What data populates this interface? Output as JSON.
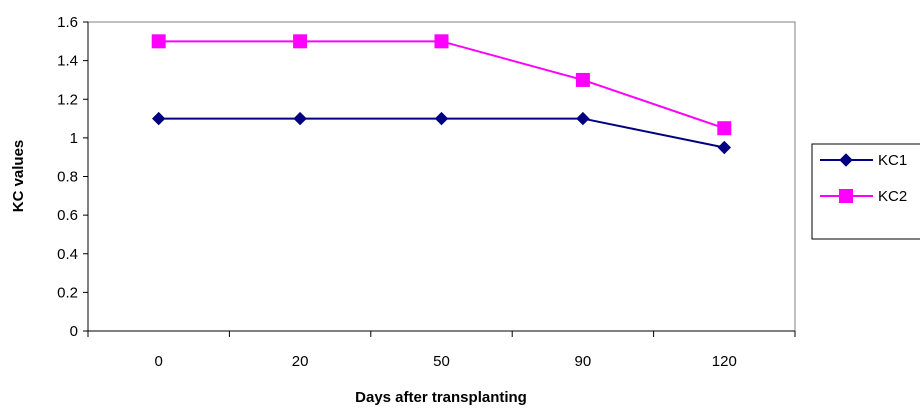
{
  "chart_data": {
    "type": "line",
    "categories": [
      "0",
      "20",
      "50",
      "90",
      "120"
    ],
    "xlabel": "Days after transplanting",
    "ylabel": "KC values",
    "ylim": [
      0,
      1.6
    ],
    "yticks": [
      "0",
      "0.2",
      "0.4",
      "0.6",
      "0.8",
      "1",
      "1.2",
      "1.4",
      "1.6"
    ],
    "grid": false,
    "legend_position": "right",
    "series": [
      {
        "name": "KC1",
        "values": [
          1.1,
          1.1,
          1.1,
          1.1,
          0.95
        ],
        "color": "#000080",
        "marker": "diamond"
      },
      {
        "name": "KC2",
        "values": [
          1.5,
          1.5,
          1.5,
          1.3,
          1.05
        ],
        "color": "#ff00ff",
        "marker": "square"
      }
    ]
  }
}
